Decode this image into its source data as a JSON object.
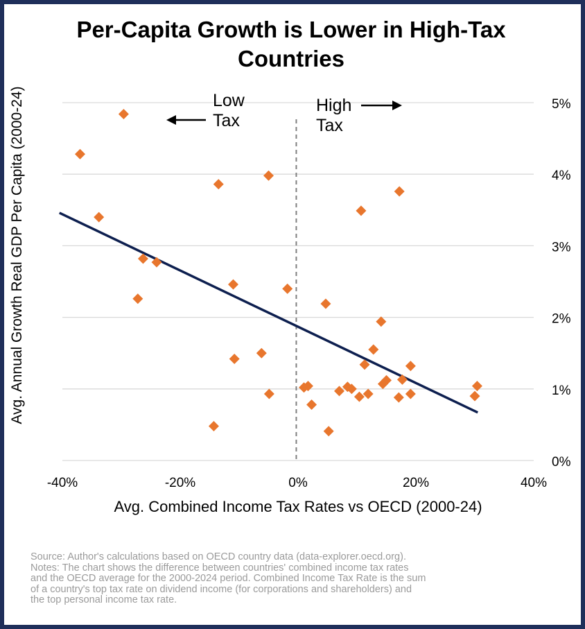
{
  "chart_data": {
    "type": "scatter",
    "title": "Per-Capita Growth is Lower in High-Tax Countries",
    "xlabel": "Avg. Combined Income Tax Rates vs OECD (2000-24)",
    "ylabel": "Avg. Annual Growth Real GDP Per Capita (2000-24)",
    "xlim": [
      -40,
      40
    ],
    "ylim": [
      0,
      5
    ],
    "x_ticks": [
      "-40%",
      "-20%",
      "0%",
      "20%",
      "40%"
    ],
    "y_ticks": [
      "0%",
      "1%",
      "2%",
      "3%",
      "4%",
      "5%"
    ],
    "y_axis_side": "right",
    "grid": "horizontal",
    "marker_color": "#e8762d",
    "trendline_color": "#0d1f4f",
    "divider_x": -0.3,
    "annotations": {
      "low_tax": [
        "Low",
        "Tax"
      ],
      "high_tax": [
        "High",
        "Tax"
      ]
    },
    "trendline": {
      "x": [
        -40.5,
        30.5
      ],
      "y": [
        3.46,
        0.67
      ]
    },
    "points": [
      {
        "x": -37,
        "y": 4.28
      },
      {
        "x": -29.6,
        "y": 4.84
      },
      {
        "x": -33.8,
        "y": 3.4
      },
      {
        "x": -26.3,
        "y": 2.82
      },
      {
        "x": -24,
        "y": 2.77
      },
      {
        "x": -27.2,
        "y": 2.26
      },
      {
        "x": -13.5,
        "y": 3.86
      },
      {
        "x": -5,
        "y": 3.98
      },
      {
        "x": -11,
        "y": 2.46
      },
      {
        "x": -1.8,
        "y": 2.4
      },
      {
        "x": -10.8,
        "y": 1.42
      },
      {
        "x": -6.2,
        "y": 1.5
      },
      {
        "x": -4.9,
        "y": 0.93
      },
      {
        "x": -14.3,
        "y": 0.48
      },
      {
        "x": 10.7,
        "y": 3.49
      },
      {
        "x": 17.2,
        "y": 3.76
      },
      {
        "x": 4.7,
        "y": 2.19
      },
      {
        "x": 14.1,
        "y": 1.94
      },
      {
        "x": 12.8,
        "y": 1.55
      },
      {
        "x": 11.3,
        "y": 1.34
      },
      {
        "x": 19.1,
        "y": 1.32
      },
      {
        "x": 17.7,
        "y": 1.13
      },
      {
        "x": 15,
        "y": 1.12
      },
      {
        "x": 14.4,
        "y": 1.07
      },
      {
        "x": 1,
        "y": 1.02
      },
      {
        "x": 1.7,
        "y": 1.04
      },
      {
        "x": 8.4,
        "y": 1.03
      },
      {
        "x": 9.1,
        "y": 1.0
      },
      {
        "x": 7,
        "y": 0.97
      },
      {
        "x": 10.4,
        "y": 0.89
      },
      {
        "x": 11.9,
        "y": 0.93
      },
      {
        "x": 17.1,
        "y": 0.88
      },
      {
        "x": 19.1,
        "y": 0.93
      },
      {
        "x": 30.4,
        "y": 1.04
      },
      {
        "x": 30,
        "y": 0.9
      },
      {
        "x": 2.3,
        "y": 0.78
      },
      {
        "x": 5.2,
        "y": 0.41
      }
    ]
  },
  "notes": {
    "source": "Source: Author's calculations based on OECD country data (data-explorer.oecd.org).",
    "line1": "Notes:  The chart shows the difference between countries' combined income tax rates",
    "line2": "and the OECD average for the 2000-2024 period. Combined Income Tax Rate is the sum",
    "line3": "of a country's top tax rate on dividend income (for corporations and shareholders) and",
    "line4": "the top personal income tax rate."
  }
}
